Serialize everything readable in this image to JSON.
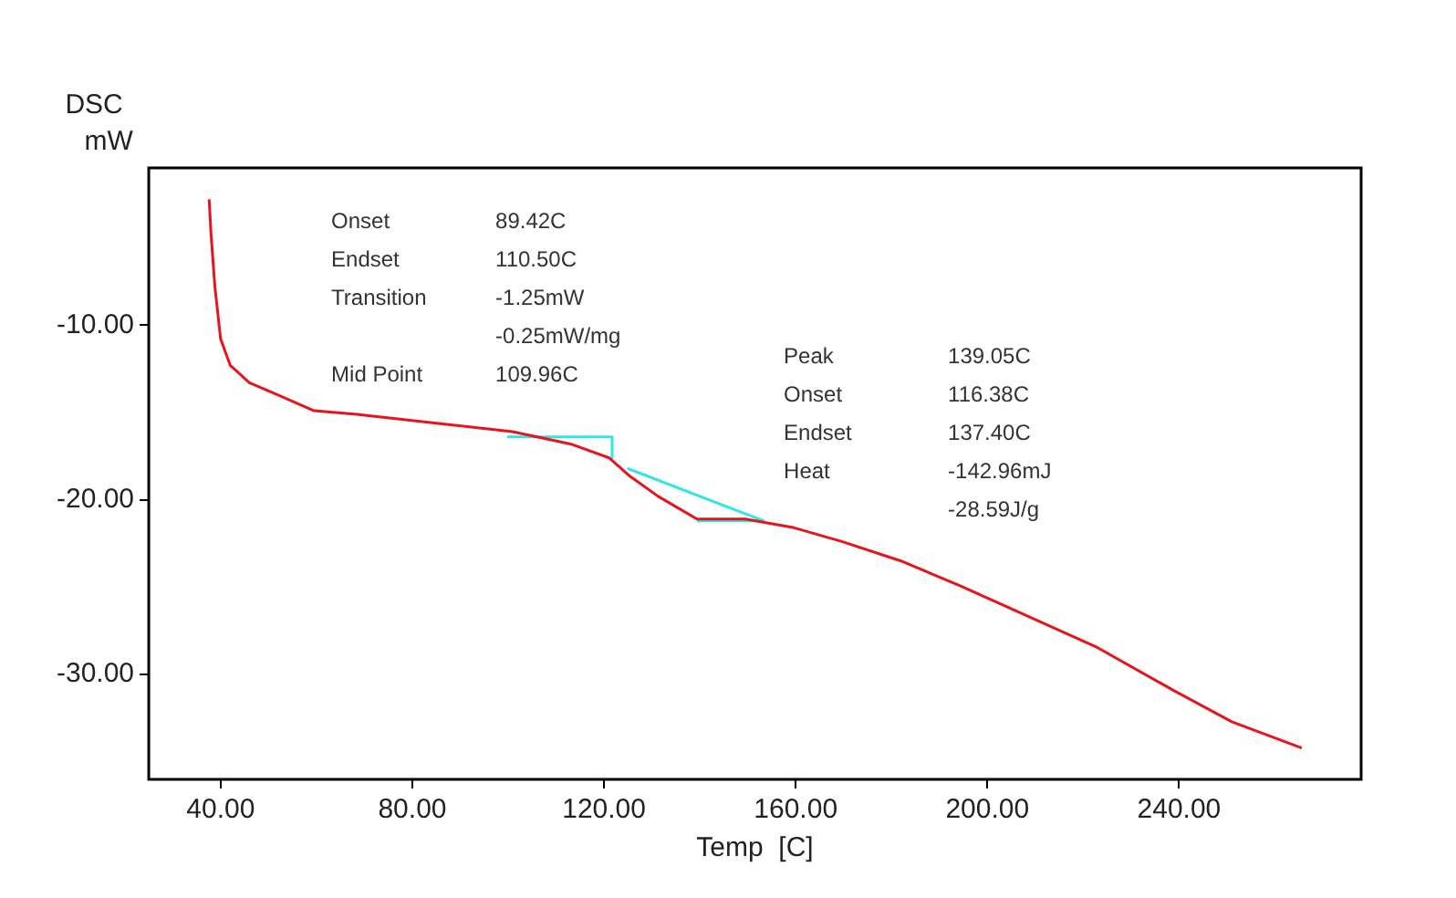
{
  "chart_data": {
    "type": "line",
    "xlabel": "Temp  [C]",
    "ylabel": "DSC mW",
    "xlim": [
      25,
      278
    ],
    "xticks": [
      {
        "value": 40,
        "label": "40.00"
      },
      {
        "value": 80,
        "label": "80.00"
      },
      {
        "value": 120,
        "label": "120.00"
      },
      {
        "value": 160,
        "label": "160.00"
      },
      {
        "value": 200,
        "label": "200.00"
      },
      {
        "value": 240,
        "label": "240.00"
      }
    ],
    "ylim": [
      -36,
      -1
    ],
    "yticks": [
      {
        "value": -10,
        "label": "-10.00"
      },
      {
        "value": -20,
        "label": "-20.00"
      },
      {
        "value": -30,
        "label": "-30.00"
      }
    ],
    "grid": false,
    "legend": false,
    "marker": "none",
    "line_style": "solid",
    "series": [
      {
        "color": "#e8141b",
        "x": [
          37.6,
          38.0,
          38.8,
          40.0,
          42.0,
          46.0,
          52.0,
          59.5,
          68.4,
          84.6,
          100.9,
          113.0,
          121.1,
          125.2,
          131.3,
          139.4,
          149.5,
          159.7,
          169.8,
          182.0,
          194.2,
          206.3,
          222.6,
          238.8,
          251.0,
          265.6
        ],
        "values": [
          -2.8,
          -4.8,
          -7.8,
          -10.8,
          -12.3,
          -13.3,
          -14.0,
          -14.9,
          -15.1,
          -15.6,
          -16.1,
          -16.8,
          -17.6,
          -18.6,
          -19.8,
          -21.1,
          -21.1,
          -21.6,
          -22.4,
          -23.5,
          -24.9,
          -26.4,
          -28.4,
          -30.9,
          -32.7,
          -34.2
        ]
      },
      {
        "color": "#33e5e5",
        "x": [
          99.8,
          121.7,
          121.7
        ],
        "values": [
          -16.4,
          -16.4,
          -17.6
        ]
      },
      {
        "color": "#33e5e5",
        "x": [
          124.9,
          153.3,
          139.4
        ],
        "values": [
          -18.2,
          -21.2,
          -21.2
        ]
      }
    ],
    "annotations": [
      "Onset 89.42C",
      "Endset 110.50C",
      "Transition -1.25mW",
      "-0.25mW/mg",
      "Mid Point 109.96C",
      "Peak 139.05C",
      "Onset 116.38C",
      "Endset 137.40C",
      "Heat -142.96mJ",
      "-28.59J/g"
    ]
  }
}
